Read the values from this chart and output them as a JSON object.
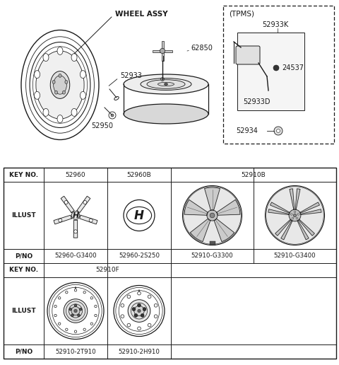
{
  "bg_color": "#ffffff",
  "line_color": "#1a1a1a",
  "diagram_labels": {
    "wheel_assy": "WHEEL ASSY",
    "part_62850": "62850",
    "part_52933": "52933",
    "part_52950": "52950",
    "tpms": "(TPMS)",
    "part_52933K": "52933K",
    "part_24537": "24537",
    "part_52933D": "52933D",
    "part_52934": "52934"
  },
  "table_col_labels": [
    "KEY NO.",
    "52960",
    "52960B",
    "52910B"
  ],
  "table_pno1": [
    "P/NO",
    "52960-G3400",
    "52960-2S250",
    "52910-G3300",
    "52910-G3400"
  ],
  "table_key2": [
    "KEY NO.",
    "52910F"
  ],
  "table_pno2": [
    "P/NO",
    "52910-2T910",
    "52910-2H910"
  ]
}
